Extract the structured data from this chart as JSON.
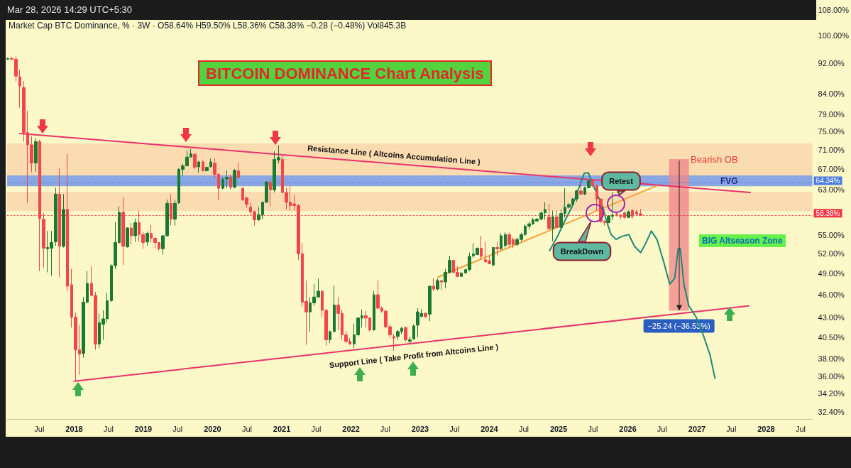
{
  "chart_data": {
    "type": "candlestick",
    "title": "BITCOIN DOMINANCE Chart Analysis",
    "subtitle": "Market Cap BTC Dominance, % · 3W · O58.64% H59.50% L58.36% C58.38% −0.28 (−0.48%) Vol845.3B",
    "x": [
      "2017-01-16",
      "2017-02-06",
      "2017-02-27",
      "2017-03-20",
      "2017-04-10",
      "2017-05-01",
      "2017-05-22",
      "2017-06-12",
      "2017-07-03",
      "2017-07-24",
      "2017-08-14",
      "2017-09-04",
      "2017-09-25",
      "2017-10-16",
      "2017-11-06",
      "2017-11-27",
      "2017-12-18",
      "2018-01-08",
      "2018-01-29",
      "2018-02-19",
      "2018-03-12",
      "2018-04-02",
      "2018-04-23",
      "2018-05-14",
      "2018-06-04",
      "2018-06-25",
      "2018-07-16",
      "2018-08-06",
      "2018-08-27",
      "2018-09-17",
      "2018-10-08",
      "2018-10-29",
      "2018-11-19",
      "2018-12-10",
      "2018-12-31",
      "2019-01-21",
      "2019-02-11",
      "2019-03-04",
      "2019-03-25",
      "2019-04-15",
      "2019-05-06",
      "2019-05-27",
      "2019-06-17",
      "2019-07-08",
      "2019-07-29",
      "2019-08-19",
      "2019-09-09",
      "2019-09-30",
      "2019-10-21",
      "2019-11-11",
      "2019-12-02",
      "2019-12-23",
      "2020-01-13",
      "2020-02-03",
      "2020-02-24",
      "2020-03-16",
      "2020-04-06",
      "2020-04-27",
      "2020-05-18",
      "2020-06-08",
      "2020-06-29",
      "2020-07-20",
      "2020-08-10",
      "2020-08-31",
      "2020-09-21",
      "2020-10-12",
      "2020-11-02",
      "2020-11-23",
      "2020-12-14",
      "2021-01-04",
      "2021-01-25",
      "2021-02-15",
      "2021-03-08",
      "2021-03-29",
      "2021-04-19",
      "2021-05-10",
      "2021-05-31",
      "2021-06-21",
      "2021-07-12",
      "2021-08-02",
      "2021-08-23",
      "2021-09-13",
      "2021-10-04",
      "2021-10-25",
      "2021-11-15",
      "2021-12-06",
      "2021-12-27",
      "2022-01-17",
      "2022-02-07",
      "2022-02-28",
      "2022-03-21",
      "2022-04-11",
      "2022-05-02",
      "2022-05-23",
      "2022-06-13",
      "2022-07-04",
      "2022-07-25",
      "2022-08-15",
      "2022-09-05",
      "2022-09-26",
      "2022-10-17",
      "2022-11-07",
      "2022-11-28",
      "2022-12-19",
      "2023-01-09",
      "2023-01-30",
      "2023-02-20",
      "2023-03-13",
      "2023-04-03",
      "2023-04-24",
      "2023-05-15",
      "2023-06-05",
      "2023-06-26",
      "2023-07-17",
      "2023-08-07",
      "2023-08-28",
      "2023-09-18",
      "2023-10-09",
      "2023-10-30",
      "2023-11-20",
      "2023-12-11",
      "2024-01-01",
      "2024-01-22",
      "2024-02-12",
      "2024-03-04",
      "2024-03-25",
      "2024-04-15",
      "2024-05-06",
      "2024-05-27",
      "2024-06-17",
      "2024-07-08",
      "2024-07-29",
      "2024-08-19",
      "2024-09-09",
      "2024-09-30",
      "2024-10-21",
      "2024-11-11",
      "2024-12-02",
      "2024-12-23",
      "2025-01-13",
      "2025-02-03",
      "2025-02-24",
      "2025-03-17",
      "2025-04-07",
      "2025-04-28",
      "2025-05-19",
      "2025-06-09",
      "2025-06-30",
      "2025-07-21",
      "2025-08-11",
      "2025-09-01",
      "2025-09-22",
      "2025-10-13",
      "2025-11-03",
      "2025-11-24",
      "2025-12-15",
      "2026-01-05",
      "2026-01-26",
      "2026-02-16",
      "2026-03-09"
    ],
    "ohlc": [
      [
        93.2,
        93.6,
        93.0,
        93.4
      ],
      [
        93.4,
        93.8,
        93.0,
        93.2
      ],
      [
        93.2,
        94.0,
        87.2,
        88.6
      ],
      [
        88.4,
        90.3,
        80.6,
        86.0
      ],
      [
        85.6,
        87.3,
        72.8,
        74.8
      ],
      [
        74.8,
        79.9,
        60.6,
        72.1
      ],
      [
        72.1,
        73.9,
        66.4,
        68.3
      ],
      [
        68.3,
        73.6,
        66.5,
        72.8
      ],
      [
        72.8,
        73.2,
        49.4,
        57.8
      ],
      [
        57.7,
        58.8,
        49.9,
        52.9
      ],
      [
        52.8,
        55.7,
        49.2,
        53.0
      ],
      [
        52.9,
        55.7,
        48.7,
        53.8
      ],
      [
        53.9,
        63.4,
        53.3,
        62.2
      ],
      [
        62.2,
        67.2,
        48.5,
        53.2
      ],
      [
        53.2,
        62.2,
        53.0,
        59.4
      ],
      [
        59.4,
        70.2,
        46.5,
        47.2
      ],
      [
        47.4,
        49.7,
        41.7,
        43.0
      ],
      [
        43.0,
        43.6,
        35.5,
        39.0
      ],
      [
        39.0,
        42.0,
        36.2,
        38.5
      ],
      [
        38.6,
        45.7,
        38.1,
        45.0
      ],
      [
        45.0,
        49.4,
        44.8,
        47.6
      ],
      [
        47.6,
        50.1,
        45.8,
        45.9
      ],
      [
        45.9,
        46.4,
        39.0,
        39.7
      ],
      [
        39.7,
        43.5,
        39.2,
        42.3
      ],
      [
        42.1,
        43.9,
        40.2,
        42.8
      ],
      [
        42.8,
        46.3,
        42.3,
        45.2
      ],
      [
        45.2,
        50.4,
        45.0,
        50.2
      ],
      [
        50.2,
        57.2,
        49.7,
        53.8
      ],
      [
        53.8,
        60.0,
        53.6,
        58.9
      ],
      [
        58.9,
        61.6,
        50.3,
        53.2
      ],
      [
        53.1,
        56.3,
        53.0,
        56.2
      ],
      [
        56.2,
        57.0,
        53.5,
        54.9
      ],
      [
        54.9,
        57.8,
        53.9,
        57.1
      ],
      [
        57.1,
        59.2,
        53.9,
        55.1
      ],
      [
        55.1,
        55.6,
        52.8,
        53.8
      ],
      [
        53.9,
        55.6,
        53.3,
        55.3
      ],
      [
        55.3,
        56.7,
        53.8,
        54.5
      ],
      [
        54.5,
        54.6,
        52.9,
        53.8
      ],
      [
        53.8,
        53.9,
        52.5,
        52.8
      ],
      [
        52.8,
        55.0,
        51.9,
        54.9
      ],
      [
        54.9,
        61.2,
        54.8,
        60.5
      ],
      [
        60.5,
        62.2,
        56.6,
        57.7
      ],
      [
        57.7,
        61.1,
        56.6,
        60.5
      ],
      [
        60.6,
        67.2,
        60.4,
        67.0
      ],
      [
        67.0,
        68.1,
        65.7,
        67.7
      ],
      [
        67.7,
        70.9,
        67.6,
        69.5
      ],
      [
        69.5,
        71.2,
        69.4,
        70.2
      ],
      [
        70.1,
        70.2,
        67.1,
        67.4
      ],
      [
        67.5,
        68.7,
        66.3,
        68.5
      ],
      [
        68.5,
        68.8,
        66.6,
        66.7
      ],
      [
        66.7,
        67.5,
        66.6,
        67.4
      ],
      [
        67.5,
        69.2,
        67.4,
        68.5
      ],
      [
        68.2,
        69.2,
        65.2,
        66.0
      ],
      [
        66.0,
        66.2,
        61.1,
        63.3
      ],
      [
        63.3,
        65.4,
        63.1,
        65.0
      ],
      [
        65.1,
        66.8,
        63.3,
        65.4
      ],
      [
        65.4,
        65.9,
        63.1,
        63.5
      ],
      [
        63.5,
        67.1,
        63.3,
        66.8
      ],
      [
        66.7,
        68.4,
        65.1,
        65.4
      ],
      [
        63.3,
        63.4,
        61.0,
        61.1
      ],
      [
        61.5,
        61.7,
        59.7,
        60.3
      ],
      [
        59.8,
        60.6,
        58.5,
        59.0
      ],
      [
        59.0,
        59.2,
        56.6,
        57.6
      ],
      [
        57.6,
        59.8,
        57.4,
        58.5
      ],
      [
        58.5,
        60.8,
        57.7,
        60.7
      ],
      [
        60.7,
        64.7,
        60.6,
        64.5
      ],
      [
        64.4,
        65.1,
        60.0,
        63.0
      ],
      [
        63.0,
        70.7,
        62.5,
        69.0
      ],
      [
        68.9,
        72.0,
        68.2,
        69.4
      ],
      [
        69.0,
        69.8,
        62.4,
        62.5
      ],
      [
        62.5,
        63.4,
        59.4,
        60.7
      ],
      [
        60.7,
        63.7,
        59.2,
        60.1
      ],
      [
        60.4,
        62.1,
        59.2,
        60.1
      ],
      [
        60.1,
        60.4,
        51.1,
        52.0
      ],
      [
        52.0,
        53.7,
        44.4,
        45.0
      ],
      [
        45.1,
        48.0,
        39.6,
        43.7
      ],
      [
        43.7,
        45.7,
        41.2,
        44.9
      ],
      [
        44.9,
        47.5,
        44.5,
        45.7
      ],
      [
        45.7,
        48.3,
        45.6,
        46.5
      ],
      [
        46.5,
        46.6,
        43.0,
        43.9
      ],
      [
        43.9,
        44.1,
        39.5,
        40.2
      ],
      [
        40.2,
        41.3,
        39.8,
        41.2
      ],
      [
        41.2,
        47.3,
        41.1,
        44.6
      ],
      [
        44.6,
        45.7,
        41.4,
        43.5
      ],
      [
        43.5,
        44.0,
        40.2,
        40.8
      ],
      [
        40.8,
        41.3,
        39.8,
        40.0
      ],
      [
        40.0,
        40.4,
        39.6,
        39.7
      ],
      [
        39.7,
        42.2,
        39.2,
        40.8
      ],
      [
        40.8,
        43.0,
        40.6,
        42.9
      ],
      [
        42.9,
        44.0,
        41.7,
        43.2
      ],
      [
        43.2,
        43.8,
        41.7,
        42.9
      ],
      [
        42.9,
        43.0,
        41.2,
        41.4
      ],
      [
        41.4,
        46.5,
        41.3,
        46.0
      ],
      [
        46.0,
        48.0,
        44.0,
        44.2
      ],
      [
        44.2,
        44.4,
        43.6,
        43.8
      ],
      [
        43.8,
        43.9,
        41.6,
        41.8
      ],
      [
        41.8,
        42.1,
        40.4,
        40.8
      ],
      [
        40.6,
        40.9,
        38.9,
        40.4
      ],
      [
        40.6,
        41.4,
        40.2,
        41.2
      ],
      [
        41.2,
        41.8,
        40.9,
        41.6
      ],
      [
        41.7,
        41.8,
        40.0,
        40.2
      ],
      [
        40.0,
        40.6,
        39.8,
        40.2
      ],
      [
        40.3,
        42.1,
        40.2,
        41.9
      ],
      [
        42.0,
        44.2,
        40.5,
        43.7
      ],
      [
        43.1,
        44.1,
        43.0,
        43.5
      ],
      [
        43.5,
        43.6,
        42.9,
        43.1
      ],
      [
        43.4,
        47.3,
        42.5,
        47.2
      ],
      [
        47.2,
        48.3,
        46.5,
        46.8
      ],
      [
        46.8,
        48.3,
        46.6,
        48.0
      ],
      [
        48.0,
        48.0,
        46.7,
        47.8
      ],
      [
        47.8,
        49.7,
        46.9,
        49.2
      ],
      [
        49.2,
        51.7,
        49.0,
        51.0
      ],
      [
        51.0,
        51.0,
        49.1,
        49.2
      ],
      [
        49.2,
        50.1,
        48.5,
        48.6
      ],
      [
        48.6,
        49.2,
        48.5,
        49.1
      ],
      [
        49.1,
        49.7,
        49.1,
        49.6
      ],
      [
        49.6,
        52.2,
        49.4,
        51.6
      ],
      [
        51.7,
        53.7,
        51.4,
        52.0
      ],
      [
        51.9,
        53.0,
        51.8,
        52.9
      ],
      [
        52.9,
        54.9,
        51.1,
        51.6
      ],
      [
        51.1,
        53.9,
        50.6,
        50.8
      ],
      [
        50.9,
        51.6,
        50.4,
        50.5
      ],
      [
        50.3,
        53.1,
        50.1,
        53.0
      ],
      [
        53.0,
        53.9,
        51.7,
        52.8
      ],
      [
        52.8,
        55.3,
        52.6,
        54.9
      ],
      [
        53.3,
        55.5,
        53.0,
        55.1
      ],
      [
        55.1,
        55.4,
        53.2,
        53.5
      ],
      [
        54.3,
        54.6,
        52.9,
        53.5
      ],
      [
        53.5,
        54.6,
        53.2,
        54.3
      ],
      [
        54.3,
        55.4,
        54.0,
        55.1
      ],
      [
        55.1,
        56.8,
        54.9,
        56.5
      ],
      [
        56.5,
        57.3,
        56.0,
        56.9
      ],
      [
        56.9,
        57.9,
        56.7,
        57.6
      ],
      [
        57.4,
        57.9,
        57.2,
        57.7
      ],
      [
        57.7,
        59.0,
        57.5,
        58.8
      ],
      [
        58.8,
        60.7,
        57.6,
        59.4
      ],
      [
        58.1,
        60.4,
        55.8,
        56.1
      ],
      [
        56.1,
        59.2,
        54.0,
        58.1
      ],
      [
        58.1,
        59.2,
        56.2,
        56.3
      ],
      [
        56.3,
        59.4,
        56.1,
        58.7
      ],
      [
        58.7,
        63.3,
        58.0,
        59.8
      ],
      [
        59.8,
        60.5,
        59.6,
        60.3
      ],
      [
        60.3,
        61.5,
        60.1,
        61.3
      ],
      [
        61.3,
        63.0,
        60.8,
        62.8
      ],
      [
        62.8,
        64.4,
        62.0,
        62.2
      ],
      [
        62.2,
        63.6,
        62.0,
        63.4
      ],
      [
        63.4,
        64.9,
        63.3,
        64.7
      ],
      [
        64.7,
        64.9,
        63.6,
        63.8
      ],
      [
        63.8,
        64.0,
        59.2,
        61.3
      ],
      [
        61.3,
        61.4,
        57.1,
        57.3
      ],
      [
        57.3,
        57.5,
        56.6,
        57.1
      ],
      [
        57.1,
        58.4,
        57.0,
        58.2
      ],
      [
        58.2,
        62.6,
        57.5,
        58.4
      ],
      [
        58.6,
        58.8,
        58.2,
        58.4
      ],
      [
        58.4,
        58.5,
        57.7,
        58.2
      ],
      [
        58.8,
        59.0,
        57.8,
        58.0
      ],
      [
        58.0,
        59.2,
        57.9,
        59.0
      ],
      [
        59.2,
        59.5,
        57.7,
        58.2
      ],
      [
        59.0,
        59.3,
        58.4,
        58.6
      ],
      [
        58.64,
        59.5,
        58.36,
        58.38
      ]
    ],
    "colors": [
      "#1b7a31",
      "#f2464a",
      "#f2464a",
      "#f2464a",
      "#f2464a",
      "#f2464a",
      "#f2464a",
      "#1b7a31",
      "#f2464a",
      "#f2464a",
      "#1b7a31",
      "#1b7a31",
      "#1b7a31",
      "#f2464a",
      "#1b7a31",
      "#f2464a",
      "#f2464a",
      "#f2464a",
      "#f2464a",
      "#1b7a31",
      "#1b7a31",
      "#f2464a",
      "#f2464a",
      "#1b7a31",
      "#1b7a31",
      "#1b7a31",
      "#1b7a31",
      "#1b7a31",
      "#1b7a31",
      "#f2464a",
      "#1b7a31",
      "#f2464a",
      "#1b7a31",
      "#f2464a",
      "#f2464a",
      "#1b7a31",
      "#f2464a",
      "#f2464a",
      "#f2464a",
      "#1b7a31",
      "#1b7a31",
      "#f2464a",
      "#1b7a31",
      "#1b7a31",
      "#1b7a31",
      "#1b7a31",
      "#1b7a31",
      "#f2464a",
      "#1b7a31",
      "#f2464a",
      "#1b7a31",
      "#1b7a31",
      "#f2464a",
      "#f2464a",
      "#1b7a31",
      "#1b7a31",
      "#f2464a",
      "#1b7a31",
      "#f2464a",
      "#f2464a",
      "#f2464a",
      "#f2464a",
      "#f2464a",
      "#1b7a31",
      "#1b7a31",
      "#1b7a31",
      "#f2464a",
      "#1b7a31",
      "#1b7a31",
      "#f2464a",
      "#f2464a",
      "#f2464a",
      "#f2464a",
      "#f2464a",
      "#f2464a",
      "#f2464a",
      "#1b7a31",
      "#1b7a31",
      "#1b7a31",
      "#f2464a",
      "#f2464a",
      "#1b7a31",
      "#1b7a31",
      "#f2464a",
      "#f2464a",
      "#f2464a",
      "#f2464a",
      "#1b7a31",
      "#1b7a31",
      "#1b7a31",
      "#f2464a",
      "#f2464a",
      "#1b7a31",
      "#f2464a",
      "#f2464a",
      "#f2464a",
      "#f2464a",
      "#f2464a",
      "#1b7a31",
      "#1b7a31",
      "#f2464a",
      "#1b7a31",
      "#1b7a31",
      "#1b7a31",
      "#1b7a31",
      "#f2464a",
      "#1b7a31",
      "#f2464a",
      "#1b7a31",
      "#f2464a",
      "#1b7a31",
      "#1b7a31",
      "#f2464a",
      "#f2464a",
      "#1b7a31",
      "#1b7a31",
      "#1b7a31",
      "#1b7a31",
      "#1b7a31",
      "#f2464a",
      "#f2464a",
      "#f2464a",
      "#1b7a31",
      "#f2464a",
      "#1b7a31",
      "#1b7a31",
      "#f2464a",
      "#f2464a",
      "#1b7a31",
      "#1b7a31",
      "#1b7a31",
      "#1b7a31",
      "#1b7a31",
      "#1b7a31",
      "#1b7a31",
      "#1b7a31",
      "#f2464a",
      "#1b7a31",
      "#f2464a",
      "#1b7a31",
      "#1b7a31",
      "#1b7a31",
      "#1b7a31",
      "#1b7a31",
      "#f2464a",
      "#1b7a31",
      "#1b7a31",
      "#f2464a",
      "#f2464a",
      "#f2464a",
      "#f2464a",
      "#1b7a31",
      "#1b7a31",
      "#f2464a",
      "#f2464a",
      "#f2464a",
      "#1b7a31",
      "#f2464a",
      "#f2464a",
      "#f2464a"
    ],
    "series": [
      {
        "type": "line",
        "color": "#e8336b",
        "x": [
          "2017-03-20",
          "2027-10-09"
        ],
        "values": [
          74.6,
          62.5
        ]
      },
      {
        "type": "line",
        "color": "#e8336b",
        "x": [
          "2018-01-01",
          "2027-10-01"
        ],
        "values": [
          35.5,
          44.5
        ]
      },
      {
        "type": "line",
        "color": "#f5a03c",
        "x": [
          "2023-04-05",
          "2026-06-04"
        ],
        "values": [
          48.5,
          63.8
        ]
      },
      {
        "type": "line",
        "color": "#1b8a7a",
        "x": [
          "2024-11-14",
          "2024-12-29",
          "2025-02-04",
          "2025-03-14",
          "2025-04-28",
          "2025-05-16",
          "2025-06-07",
          "2025-06-26",
          "2025-07-29",
          "2025-08-21",
          "2025-09-09",
          "2025-10-05",
          "2025-10-31",
          "2025-11-30",
          "2026-01-06",
          "2026-02-05",
          "2026-03-10",
          "2026-04-09",
          "2026-05-05",
          "2026-06-04",
          "2026-07-11",
          "2026-08-10",
          "2026-09-05",
          "2026-09-24",
          "2026-10-05",
          "2026-10-24",
          "2026-11-19",
          "2026-12-26",
          "2027-02-01",
          "2027-03-11",
          "2027-04-06"
        ],
        "values": [
          52.5,
          55.0,
          57.5,
          60.0,
          64.4,
          66.2,
          66.3,
          64.4,
          61.7,
          60.0,
          57.5,
          55.1,
          54.3,
          54.8,
          55.1,
          53.2,
          52.2,
          53.9,
          55.7,
          54.3,
          50.6,
          47.5,
          48.3,
          52.8,
          52.8,
          47.5,
          44.5,
          43.1,
          40.9,
          38.4,
          35.8
        ]
      },
      {
        "type": "bar",
        "color": "#f08a8a",
        "x": [
          "2026-09-28"
        ],
        "base": [
          69.09
        ],
        "values": [
          -25.24
        ],
        "value_labels": [
          "−25.24 (−36.53%)"
        ]
      }
    ],
    "bands": [
      {
        "axis": "y",
        "from": 65.8,
        "to": 72.4,
        "label": "Bearish OB",
        "color": "#fbd7ad"
      },
      {
        "axis": "y",
        "from": 63.7,
        "to": 65.8,
        "label": "FVG",
        "color": "#7d9de6"
      },
      {
        "axis": "y",
        "from": 59.1,
        "to": 62.6,
        "label": null,
        "color": "#fbd7ad"
      }
    ],
    "ref_lines": [
      {
        "axis": "y",
        "value": 64.34,
        "label": "64.34%",
        "color": "#4a7de0",
        "line_style": "dotted"
      },
      {
        "axis": "y",
        "value": 58.38,
        "label": "58.38%",
        "color": "#f23645",
        "line_style": "dotted"
      }
    ],
    "annotations": [
      "Mar 28, 2026 14:29 UTC+5:30",
      "Resistance Line ( Altcoins Accumulation Line )",
      "Support Line ( Take Profit from Altcoins Line )",
      "BIG Altseason Zone",
      "Retest",
      "BreakDown"
    ],
    "xlim": [
      "2017-01-12",
      "2028-09-01"
    ],
    "xticks": [
      {
        "value": "2017-07-01",
        "label": "Jul"
      },
      {
        "value": "2018-01-01",
        "label": "2018"
      },
      {
        "value": "2018-07-01",
        "label": "Jul"
      },
      {
        "value": "2019-01-01",
        "label": "2019"
      },
      {
        "value": "2019-07-01",
        "label": "Jul"
      },
      {
        "value": "2020-01-01",
        "label": "2020"
      },
      {
        "value": "2020-07-01",
        "label": "Jul"
      },
      {
        "value": "2021-01-01",
        "label": "2021"
      },
      {
        "value": "2021-07-01",
        "label": "Jul"
      },
      {
        "value": "2022-01-01",
        "label": "2022"
      },
      {
        "value": "2022-07-01",
        "label": "Jul"
      },
      {
        "value": "2023-01-01",
        "label": "2023"
      },
      {
        "value": "2023-07-01",
        "label": "Jul"
      },
      {
        "value": "2024-01-01",
        "label": "2024"
      },
      {
        "value": "2024-07-01",
        "label": "Jul"
      },
      {
        "value": "2025-01-01",
        "label": "2025"
      },
      {
        "value": "2025-07-01",
        "label": "Jul"
      },
      {
        "value": "2026-01-01",
        "label": "2026"
      },
      {
        "value": "2026-07-01",
        "label": "Jul"
      },
      {
        "value": "2027-01-01",
        "label": "2027"
      },
      {
        "value": "2027-07-01",
        "label": "Jul"
      },
      {
        "value": "2028-01-01",
        "label": "2028"
      },
      {
        "value": "2028-07-01",
        "label": "Jul"
      }
    ],
    "ylim": [
      31.7,
      111.3
    ],
    "yticks": [
      {
        "value": 108,
        "label": "108.00%"
      },
      {
        "value": 100,
        "label": "100.00%"
      },
      {
        "value": 92,
        "label": "92.00%"
      },
      {
        "value": 84,
        "label": "84.00%"
      },
      {
        "value": 79,
        "label": "79.00%"
      },
      {
        "value": 75,
        "label": "75.00%"
      },
      {
        "value": 71,
        "label": "71.00%"
      },
      {
        "value": 67,
        "label": "67.00%"
      },
      {
        "value": 63,
        "label": "63.00%"
      },
      {
        "value": 55,
        "label": "55.00%"
      },
      {
        "value": 52,
        "label": "52.00%"
      },
      {
        "value": 49,
        "label": "49.00%"
      },
      {
        "value": 46,
        "label": "46.00%"
      },
      {
        "value": 43,
        "label": "43.00%"
      },
      {
        "value": 40.5,
        "label": "40.50%"
      },
      {
        "value": 38,
        "label": "38.00%"
      },
      {
        "value": 36,
        "label": "36.00%"
      },
      {
        "value": 34.2,
        "label": "34.20%"
      },
      {
        "value": 32.4,
        "label": "32.40%"
      }
    ],
    "log": "y",
    "grid": false,
    "marker": "none",
    "line_style": "solid"
  }
}
